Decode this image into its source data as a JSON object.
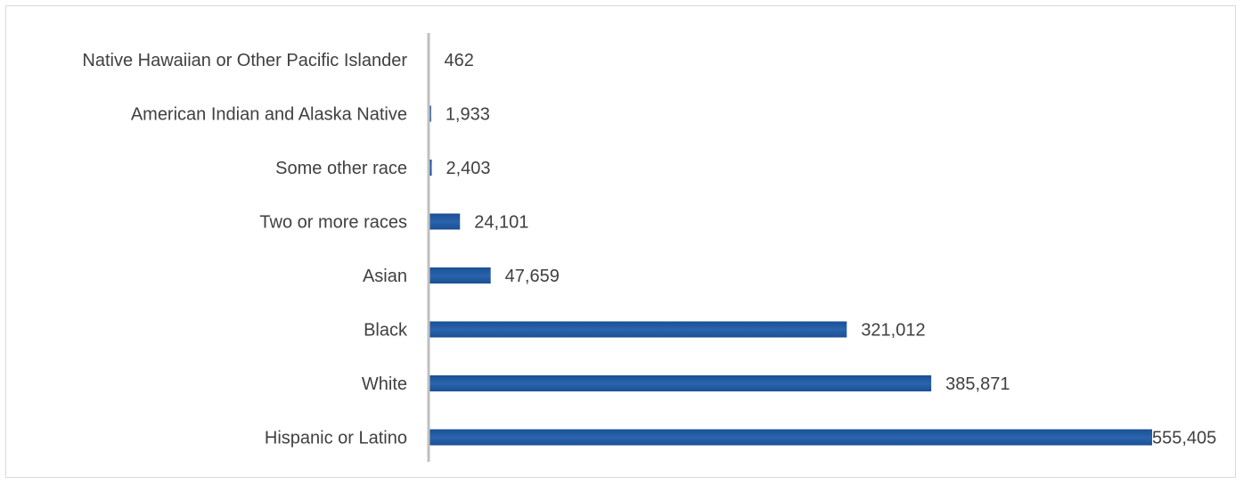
{
  "chart_data": {
    "type": "bar",
    "orientation": "horizontal",
    "title": "",
    "xlabel": "",
    "ylabel": "",
    "categories": [
      "Native Hawaiian or Other Pacific Islander",
      "American Indian and Alaska Native",
      "Some other race",
      "Two or more races",
      "Asian",
      "Black",
      "White",
      "Hispanic or Latino"
    ],
    "values": [
      462,
      1933,
      2403,
      24101,
      47659,
      321012,
      385871,
      555405
    ],
    "value_labels": [
      "462",
      "1,933",
      "2,403",
      "24,101",
      "47,659",
      "321,012",
      "385,871",
      "555,405"
    ],
    "xlim": [
      0,
      555405
    ],
    "grid": false,
    "legend": "none",
    "bar_color": "#1F5597",
    "axis_color": "#BFBFBF",
    "text_color": "#404040"
  }
}
